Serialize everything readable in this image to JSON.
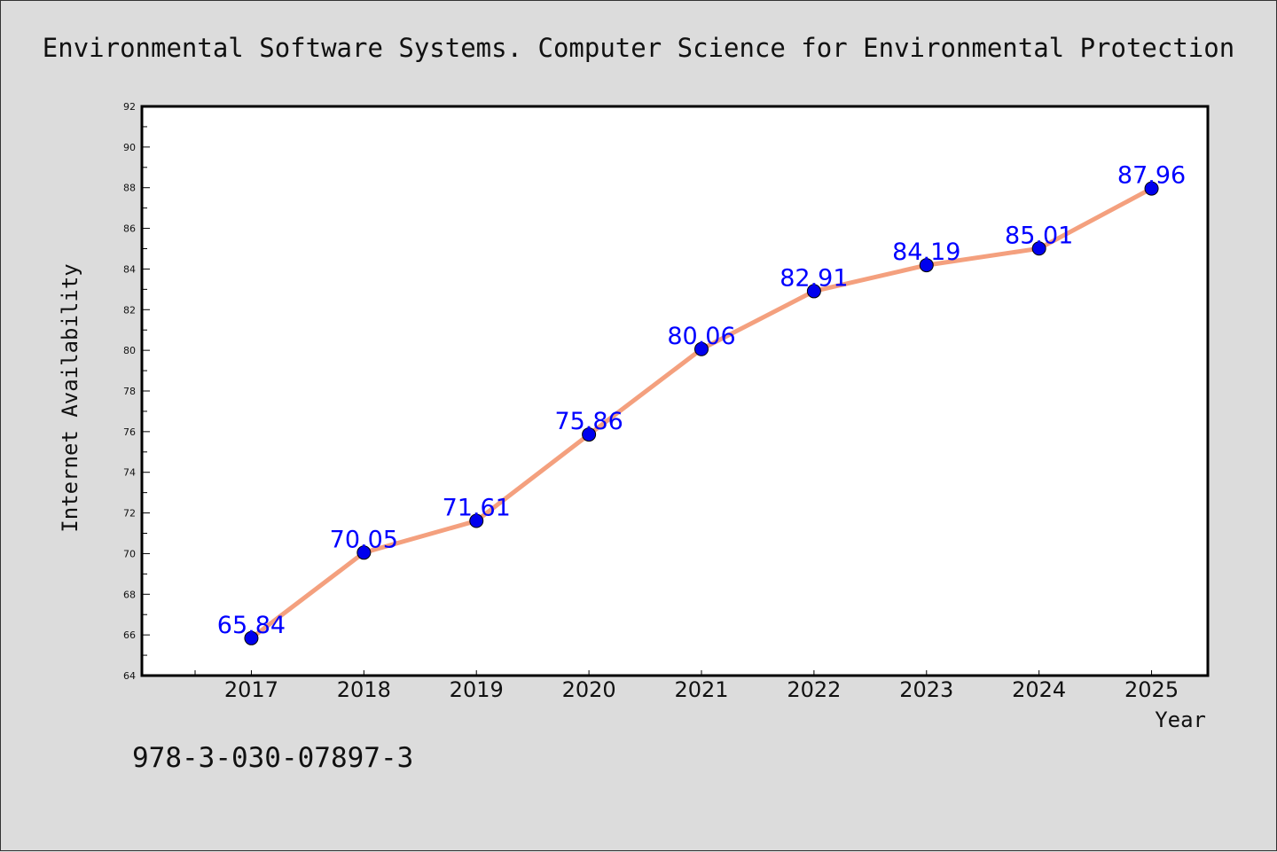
{
  "chart_data": {
    "type": "line",
    "title": "Environmental Software Systems. Computer Science for Environmental Protection",
    "xlabel": "Year",
    "ylabel": "Internet Availability",
    "ylim": [
      64,
      92
    ],
    "x_range": [
      2016.5,
      2025.5
    ],
    "yticks": [
      64,
      66,
      68,
      70,
      72,
      74,
      76,
      78,
      80,
      82,
      84,
      86,
      88,
      90,
      92
    ],
    "yticks_minor_step": 1,
    "grid": false,
    "categories": [
      "2017",
      "2018",
      "2019",
      "2020",
      "2021",
      "2022",
      "2023",
      "2024",
      "2025"
    ],
    "x": [
      2017,
      2018,
      2019,
      2020,
      2021,
      2022,
      2023,
      2024,
      2025
    ],
    "series": [
      {
        "values": [
          65.84,
          70.05,
          71.61,
          75.86,
          80.06,
          82.91,
          84.19,
          85.01,
          87.96
        ],
        "labels": [
          "65.84",
          "70.05",
          "71.61",
          "75.86",
          "80.06",
          "82.91",
          "84.19",
          "85.01",
          "87.96"
        ],
        "line_color": "#f4a07e",
        "marker_color": "#0000ee",
        "label_color": "#0000ff"
      }
    ]
  },
  "footer": {
    "isbn": "978-3-030-07897-3"
  }
}
